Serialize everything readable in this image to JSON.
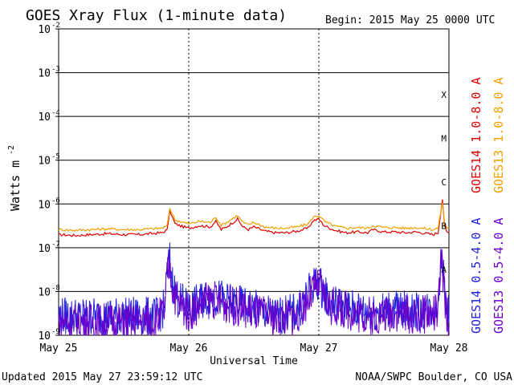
{
  "chart_data": {
    "type": "line",
    "title": "GOES Xray Flux (1-minute data)",
    "begin_label": "Begin:  2015 May 25 0000 UTC",
    "ylabel_prefix": "Watts m",
    "ylabel_exponent": "-2",
    "xlabel": "Universal Time",
    "y_scale": "log",
    "ylim": [
      1e-09,
      0.01
    ],
    "xlim": [
      0,
      72
    ],
    "x_ticks": [
      {
        "x": 0,
        "label": "May 25"
      },
      {
        "x": 24,
        "label": "May 26"
      },
      {
        "x": 48,
        "label": "May 27"
      },
      {
        "x": 72,
        "label": "May 28"
      }
    ],
    "y_ticks": [
      {
        "exp": -2,
        "label": "-2"
      },
      {
        "exp": -3,
        "label": "-3"
      },
      {
        "exp": -4,
        "label": "-4"
      },
      {
        "exp": -5,
        "label": "-5"
      },
      {
        "exp": -6,
        "label": "-6"
      },
      {
        "exp": -7,
        "label": "-7"
      },
      {
        "exp": -8,
        "label": "-8"
      },
      {
        "exp": -9,
        "label": "-9"
      }
    ],
    "y_tick_base": "10",
    "flare_classes": [
      {
        "label": "X",
        "exp": -3.5
      },
      {
        "label": "M",
        "exp": -4.5
      },
      {
        "label": "C",
        "exp": -5.5
      },
      {
        "label": "B",
        "exp": -6.5
      },
      {
        "label": "A",
        "exp": -7.5
      }
    ],
    "grid": true,
    "series": [
      {
        "name": "GOES14 1.0-8.0 A",
        "color": "#dd0000",
        "x": [
          0,
          3,
          6,
          9,
          12,
          15,
          17,
          19,
          20,
          20.5,
          21.5,
          23,
          24,
          26,
          28,
          29,
          30,
          31,
          33,
          34,
          35,
          36,
          38,
          40,
          42,
          44,
          46,
          47,
          48,
          49,
          50,
          51,
          53,
          55,
          57,
          58,
          60,
          62,
          64,
          66,
          68,
          69,
          70,
          70.8,
          71.2,
          71.6,
          72
        ],
        "values": [
          2e-07,
          1.9e-07,
          2e-07,
          2.1e-07,
          2e-07,
          2e-07,
          2.1e-07,
          2.2e-07,
          2.5e-07,
          7e-07,
          3.5e-07,
          3e-07,
          2.8e-07,
          3.2e-07,
          3e-07,
          4e-07,
          2.6e-07,
          3e-07,
          4.5e-07,
          3e-07,
          2.6e-07,
          3e-07,
          2.4e-07,
          2.2e-07,
          2.2e-07,
          2.4e-07,
          2.8e-07,
          4.2e-07,
          4.5e-07,
          3.2e-07,
          2.8e-07,
          2.5e-07,
          2.2e-07,
          2.3e-07,
          2.2e-07,
          2.6e-07,
          2.3e-07,
          2.3e-07,
          2.2e-07,
          2.3e-07,
          2.1e-07,
          2e-07,
          2.2e-07,
          1.3e-06,
          3e-07,
          2.3e-07,
          2.2e-07
        ]
      },
      {
        "name": "GOES13 1.0-8.0 A",
        "color": "#f0a000",
        "x": [
          0,
          3,
          6,
          9,
          12,
          15,
          17,
          19,
          20,
          20.5,
          21.5,
          23,
          24,
          26,
          28,
          29,
          30,
          31,
          33,
          34,
          35,
          36,
          38,
          40,
          42,
          44,
          46,
          47,
          48,
          49,
          50,
          51,
          53,
          55,
          57,
          58,
          60,
          62,
          64,
          66,
          68,
          69,
          70,
          70.8,
          71.2,
          71.6,
          72
        ],
        "values": [
          2.6e-07,
          2.5e-07,
          2.6e-07,
          2.7e-07,
          2.6e-07,
          2.6e-07,
          2.7e-07,
          2.8e-07,
          3.1e-07,
          8e-07,
          4.3e-07,
          3.8e-07,
          3.5e-07,
          4e-07,
          3.8e-07,
          5e-07,
          3.3e-07,
          3.8e-07,
          5.5e-07,
          3.8e-07,
          3.3e-07,
          3.8e-07,
          3e-07,
          2.8e-07,
          2.8e-07,
          3e-07,
          3.5e-07,
          5e-07,
          5.5e-07,
          4e-07,
          3.5e-07,
          3.1e-07,
          2.8e-07,
          2.9e-07,
          2.8e-07,
          3.2e-07,
          2.9e-07,
          2.9e-07,
          2.8e-07,
          2.9e-07,
          2.7e-07,
          2.6e-07,
          2.8e-07,
          1.1e-06,
          3.6e-07,
          2.9e-07,
          2.8e-07
        ]
      },
      {
        "name": "GOES14 0.5-4.0 A",
        "color": "#2020dd",
        "x": [
          0,
          6,
          12,
          18,
          19.5,
          20,
          20.5,
          21,
          22,
          24,
          28,
          32,
          36,
          40,
          44,
          47,
          48,
          50,
          54,
          58,
          62,
          66,
          70,
          70.6,
          71.0,
          71.4,
          72
        ],
        "values": [
          2e-09,
          2e-09,
          2e-09,
          2e-09,
          3e-09,
          1.8e-08,
          4e-08,
          1.2e-08,
          5e-09,
          3e-09,
          6e-09,
          4e-09,
          3e-09,
          2e-09,
          2.5e-09,
          1e-08,
          1.2e-08,
          4e-09,
          3e-09,
          2.5e-09,
          3e-09,
          2.5e-09,
          3e-09,
          1.2e-07,
          1.5e-08,
          4e-09,
          2e-09
        ]
      },
      {
        "name": "GOES13 0.5-4.0 A",
        "color": "#6a00cc",
        "x": [
          0,
          6,
          12,
          18,
          19.5,
          20,
          20.5,
          21,
          22,
          24,
          28,
          32,
          36,
          40,
          44,
          47,
          48,
          50,
          54,
          58,
          62,
          66,
          70,
          70.6,
          71.0,
          71.4,
          72
        ],
        "values": [
          1.5e-09,
          1.5e-09,
          1.5e-09,
          1.6e-09,
          2.5e-09,
          1.5e-08,
          3e-08,
          9e-09,
          4e-09,
          2.5e-09,
          5e-09,
          3.5e-09,
          2.5e-09,
          1.8e-09,
          2e-09,
          8e-09,
          1e-08,
          3.5e-09,
          2.5e-09,
          2e-09,
          2.5e-09,
          2e-09,
          2.5e-09,
          5e-08,
          1e-08,
          3e-09,
          1.5e-09
        ]
      }
    ]
  },
  "footer": {
    "updated": "Updated 2015 May 27 23:59:12 UTC",
    "credit": "NOAA/SWPC Boulder, CO USA"
  }
}
